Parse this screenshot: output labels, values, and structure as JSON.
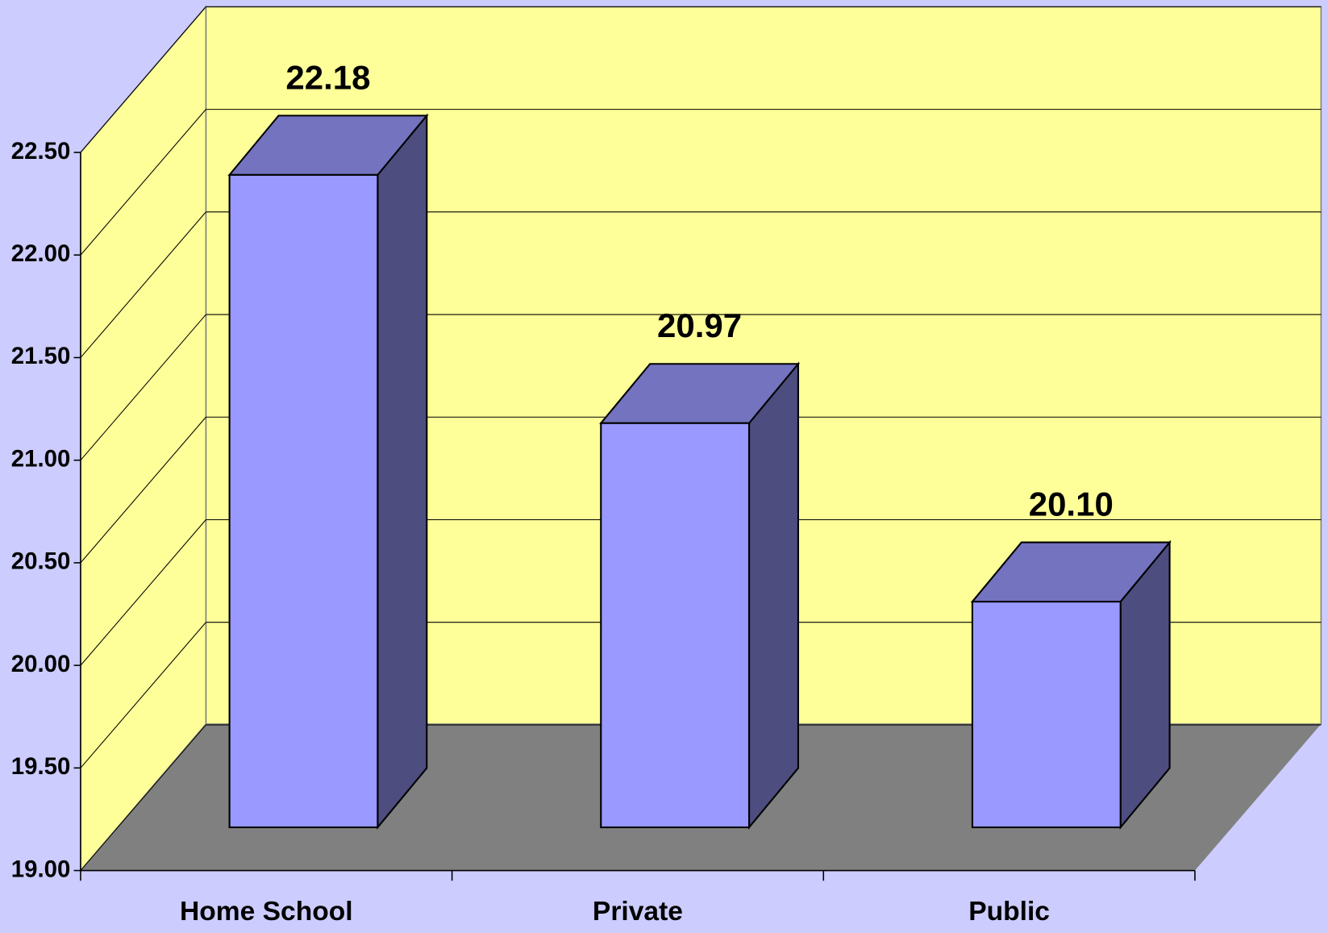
{
  "chart_data": {
    "type": "bar3d",
    "categories": [
      "Home School",
      "Private",
      "Public"
    ],
    "values": [
      22.18,
      20.97,
      20.1
    ],
    "value_labels": [
      "22.18",
      "20.97",
      "20.10"
    ],
    "color": "#9999ff",
    "ylim": [
      19,
      22.5
    ],
    "yticks": [
      {
        "value": 19,
        "label": "19.00"
      },
      {
        "value": 19.5,
        "label": "19.50"
      },
      {
        "value": 20,
        "label": "20.00"
      },
      {
        "value": 20.5,
        "label": "20.50"
      },
      {
        "value": 21,
        "label": "21.00"
      },
      {
        "value": 21.5,
        "label": "21.50"
      },
      {
        "value": 22,
        "label": "22.00"
      },
      {
        "value": 22.5,
        "label": "22.50"
      }
    ],
    "grid": true
  }
}
